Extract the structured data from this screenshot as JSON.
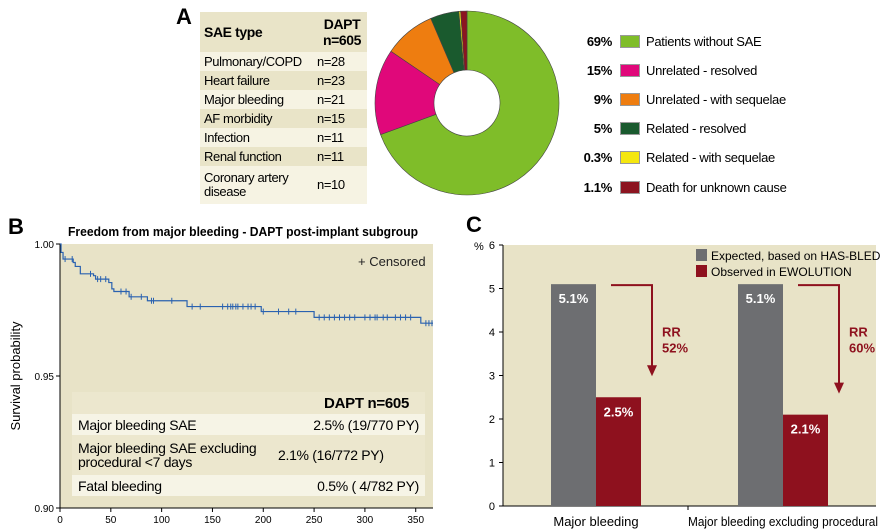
{
  "panels": {
    "a": "A",
    "b": "B",
    "c": "C"
  },
  "chart_data": [
    {
      "type": "table",
      "panel": "A",
      "headers": [
        "SAE type",
        "DAPT n=605"
      ],
      "rows": [
        [
          "Pulmonary/COPD",
          "n=28"
        ],
        [
          "Heart failure",
          "n=23"
        ],
        [
          "Major bleeding",
          "n=21"
        ],
        [
          "AF morbidity",
          "n=15"
        ],
        [
          "Infection",
          "n=11"
        ],
        [
          "Renal function",
          "n=11"
        ],
        [
          "Coronary artery disease",
          "n=10"
        ]
      ]
    },
    {
      "type": "pie",
      "panel": "A",
      "donut": true,
      "slices": [
        {
          "label": "Patients without SAE",
          "pct_label": "69%",
          "value": 69,
          "color": "#7fbd29"
        },
        {
          "label": "Unrelated - resolved",
          "pct_label": "15%",
          "value": 15,
          "color": "#e0087a"
        },
        {
          "label": "Unrelated - with sequelae",
          "pct_label": "9%",
          "value": 9,
          "color": "#ee7d10"
        },
        {
          "label": "Related - resolved",
          "pct_label": "5%",
          "value": 5,
          "color": "#1a5a2e"
        },
        {
          "label": "Related - with sequelae",
          "pct_label": "0.3%",
          "value": 0.3,
          "color": "#f5e70f"
        },
        {
          "label": "Death for unknown cause",
          "pct_label": "1.1%",
          "value": 1.1,
          "color": "#8c1420"
        }
      ]
    },
    {
      "type": "line",
      "panel": "B",
      "subtype": "kaplan-meier",
      "title": "Freedom from major bleeding - DAPT post-implant subgroup",
      "xlabel": "",
      "ylabel": "Survival probability",
      "xlim": [
        0,
        367
      ],
      "ylim": [
        0.9,
        1.0
      ],
      "xticks": [
        0,
        50,
        100,
        150,
        200,
        250,
        300,
        350
      ],
      "yticks": [
        "0.90",
        "0.95",
        "1.00"
      ],
      "legend": "+ Censored",
      "legend_position": "top-right",
      "color": "#2a62b0",
      "steps": [
        [
          0,
          1.0
        ],
        [
          1,
          0.9968
        ],
        [
          3,
          0.9943
        ],
        [
          13,
          0.993
        ],
        [
          15,
          0.9915
        ],
        [
          20,
          0.9887
        ],
        [
          33,
          0.988
        ],
        [
          35,
          0.9867
        ],
        [
          48,
          0.9854
        ],
        [
          51,
          0.983
        ],
        [
          53,
          0.982
        ],
        [
          68,
          0.98
        ],
        [
          86,
          0.9785
        ],
        [
          125,
          0.9763
        ],
        [
          198,
          0.9744
        ],
        [
          250,
          0.9722
        ],
        [
          355,
          0.97
        ],
        [
          367,
          0.97
        ]
      ],
      "censored": [
        5,
        12,
        30,
        37,
        40,
        45,
        60,
        65,
        70,
        80,
        90,
        92,
        110,
        130,
        138,
        160,
        165,
        168,
        170,
        173,
        175,
        180,
        185,
        188,
        192,
        200,
        215,
        225,
        232,
        255,
        260,
        265,
        270,
        275,
        280,
        285,
        290,
        300,
        305,
        310,
        312,
        318,
        322,
        330,
        335,
        340,
        345,
        360,
        363,
        366
      ],
      "inset_table": {
        "header": "DAPT n=605",
        "rows": [
          {
            "label": "Major bleeding SAE",
            "value": "2.5% (19/770 PY)"
          },
          {
            "label": "Major bleeding SAE excluding procedural <7 days",
            "value": "2.1% (16/772 PY)"
          },
          {
            "label": "Fatal bleeding",
            "value": "0.5% ( 4/782 PY)"
          }
        ]
      }
    },
    {
      "type": "bar",
      "panel": "C",
      "categories": [
        "Major bleeding",
        "Major bleeding excluding procedural"
      ],
      "ylabel": "%",
      "ylim": [
        0,
        6
      ],
      "yticks": [
        0,
        1,
        2,
        3,
        4,
        5,
        6
      ],
      "legend_position": "top-right",
      "series": [
        {
          "name": "Expected, based on HAS-BLED",
          "values": [
            5.1,
            5.1
          ],
          "labels": [
            "5.1%",
            "5.1%"
          ],
          "color": "#6d6e71"
        },
        {
          "name": "Observed in EWOLUTION",
          "values": [
            2.5,
            2.1
          ],
          "labels": [
            "2.5%",
            "2.1%"
          ],
          "color": "#8e111e"
        }
      ],
      "annotations": [
        {
          "text1": "RR",
          "text2": "52%"
        },
        {
          "text1": "RR",
          "text2": "60%"
        }
      ]
    }
  ]
}
